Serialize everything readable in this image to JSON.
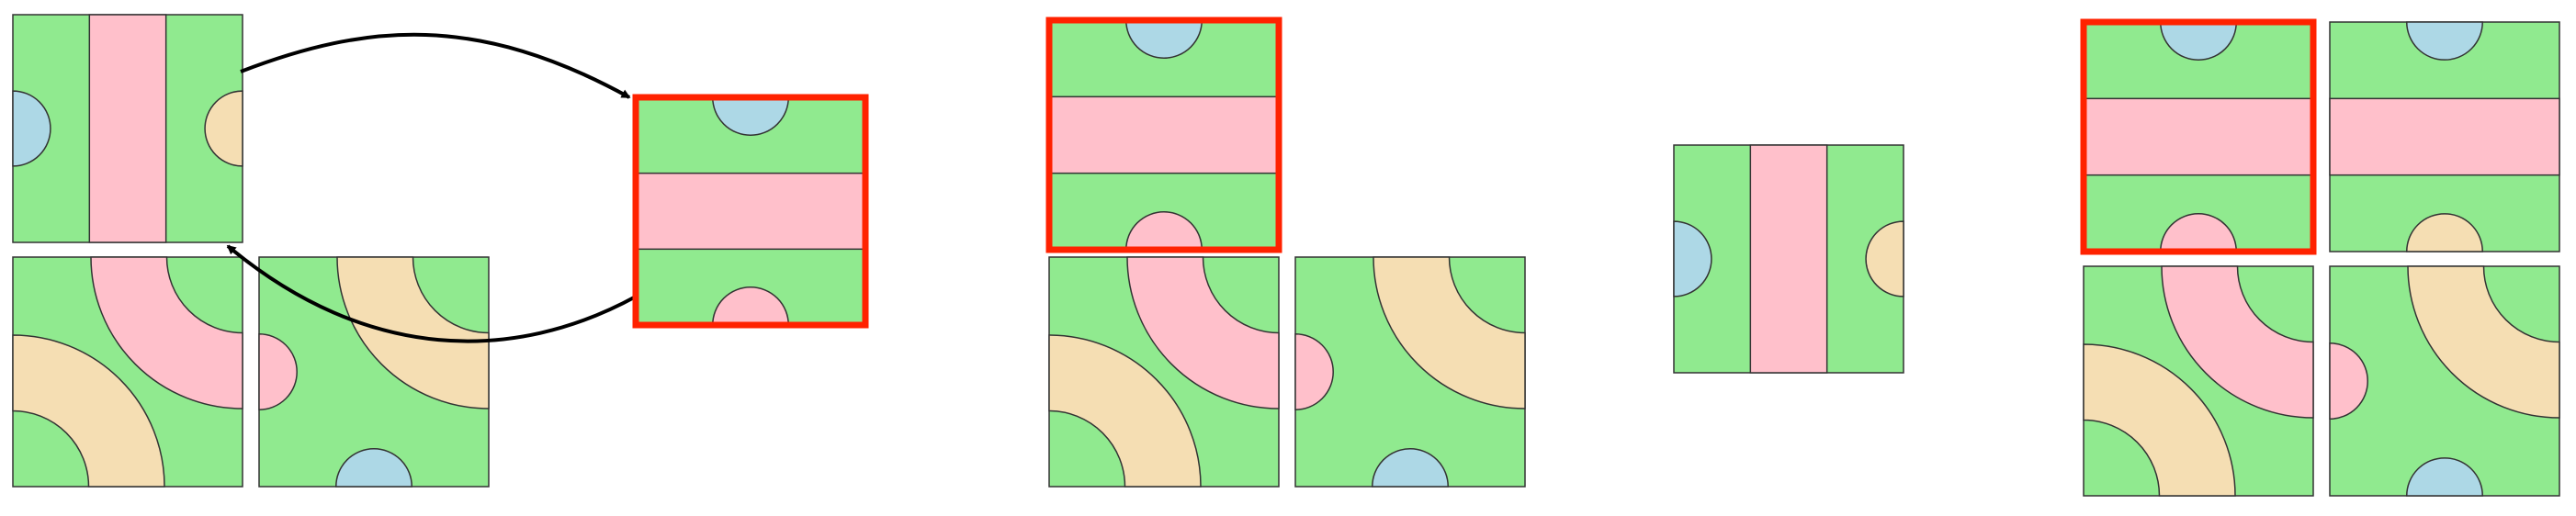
{
  "colors": {
    "background": "#ffffff",
    "grass": "#90ea8f",
    "road_pink": "#ffc0cb",
    "road_tan": "#f5deb3",
    "water_blue": "#add8e6",
    "outline": "#333333",
    "highlight": "#ff2200",
    "arrow": "#000000"
  },
  "tile_types": [
    "vertical-road-tile",
    "horizontal-road-tile",
    "curve-road-tile-a",
    "curve-road-tile-b"
  ],
  "panels": [
    {
      "name": "panel-rotation-step",
      "description_tiles": [
        "vertical-road-tile",
        "curve-road-tile-a",
        "curve-road-tile-b"
      ],
      "highlighted_tile": "horizontal-road-tile",
      "arrows": 2
    },
    {
      "name": "panel-placed-tile",
      "highlighted_tile": "horizontal-road-tile"
    },
    {
      "name": "panel-candidate-tile",
      "tile": "vertical-road-tile"
    },
    {
      "name": "panel-result-grid",
      "highlighted_tile": "horizontal-road-tile"
    }
  ]
}
